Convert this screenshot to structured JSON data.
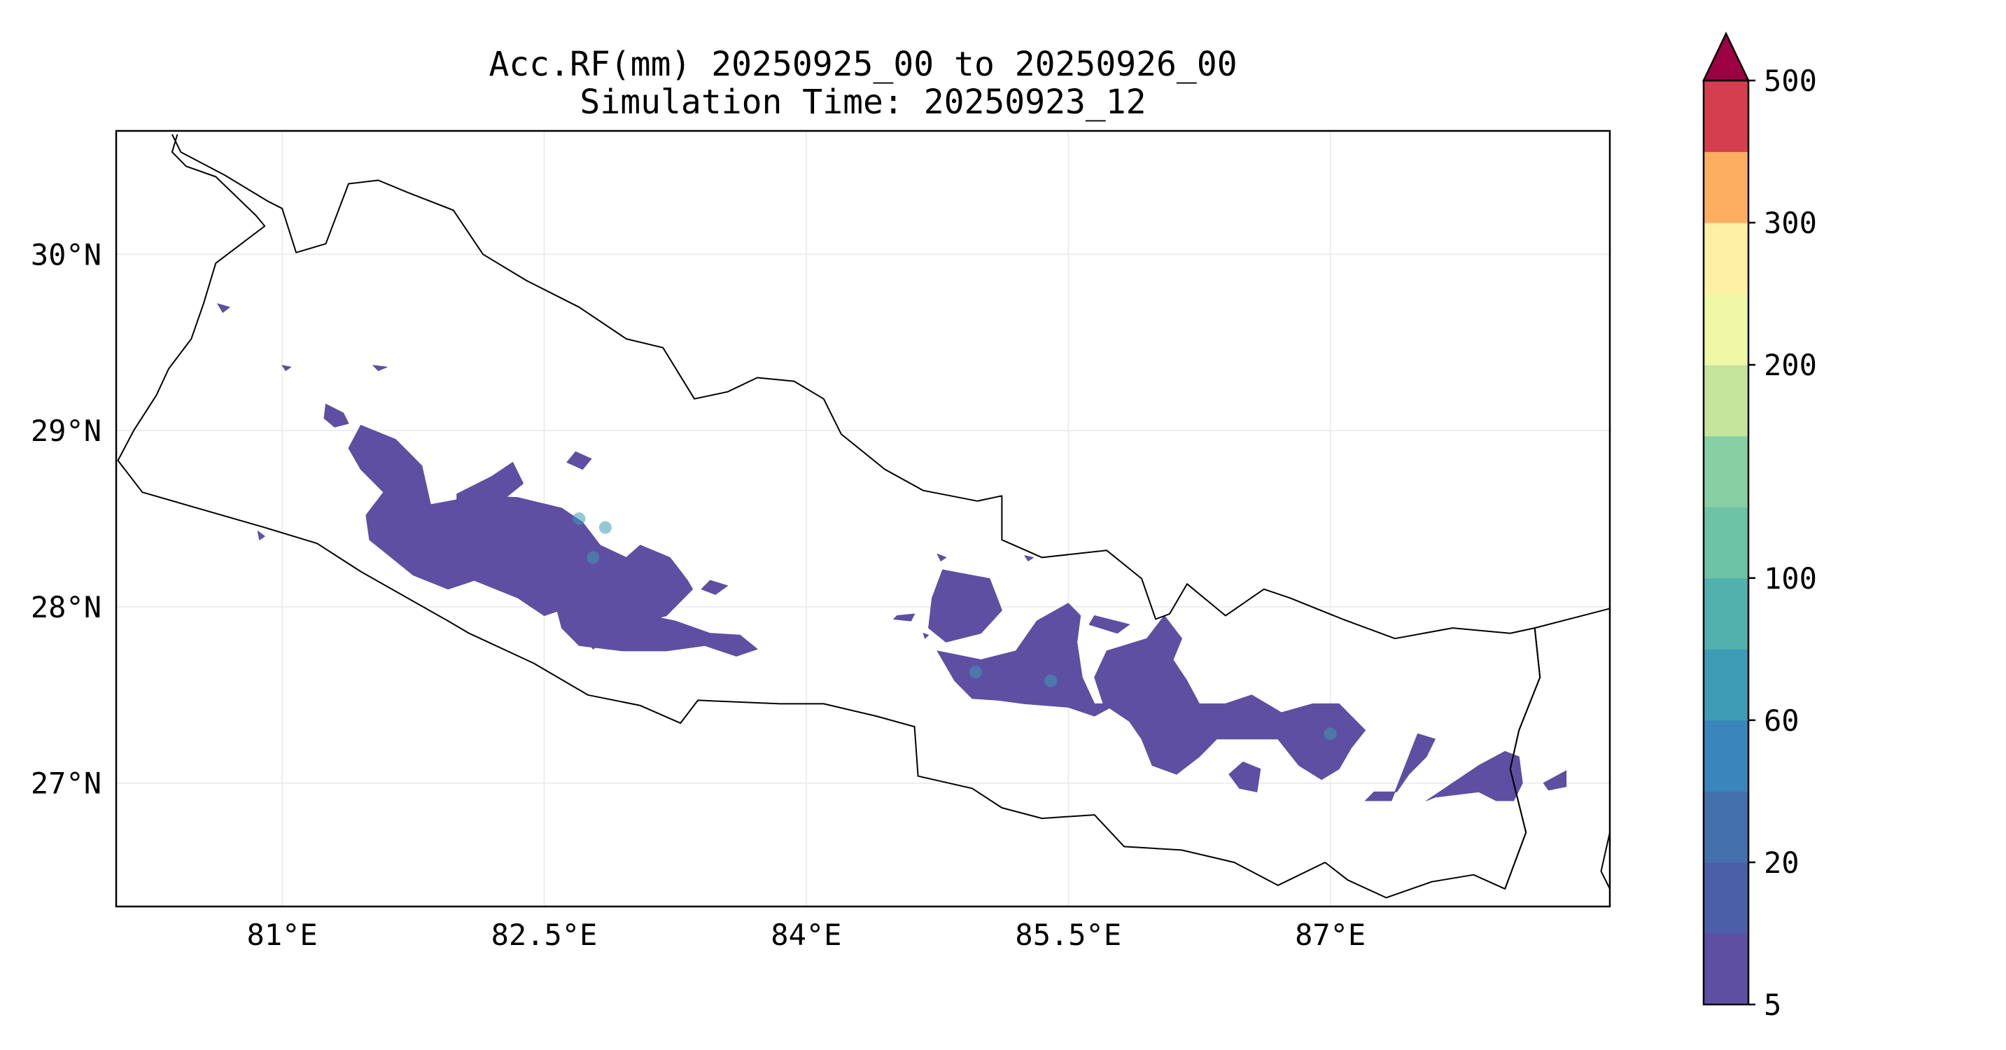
{
  "title": {
    "line1": "Acc.RF(mm) 20250925_00 to 20250926_00",
    "line2": "Simulation Time: 20250923_12"
  },
  "map": {
    "lon_range": [
      80.05,
      88.6
    ],
    "lat_range": [
      26.3,
      30.7
    ],
    "gridlines": true,
    "x_ticks": [
      {
        "value": 81,
        "label": "81°E"
      },
      {
        "value": 82.5,
        "label": "82.5°E"
      },
      {
        "value": 84,
        "label": "84°E"
      },
      {
        "value": 85.5,
        "label": "85.5°E"
      },
      {
        "value": 87,
        "label": "87°E"
      }
    ],
    "y_ticks": [
      {
        "value": 30,
        "label": "30°N"
      },
      {
        "value": 29,
        "label": "29°N"
      },
      {
        "value": 28,
        "label": "28°N"
      },
      {
        "value": 27,
        "label": "27°N"
      }
    ],
    "boundary": [
      [
        80.37,
        30.68
      ],
      [
        80.42,
        30.58
      ],
      [
        80.67,
        30.45
      ],
      [
        80.92,
        30.3
      ],
      [
        81.0,
        30.26
      ],
      [
        81.08,
        30.01
      ],
      [
        81.25,
        30.06
      ],
      [
        81.38,
        30.4
      ],
      [
        81.55,
        30.42
      ],
      [
        81.72,
        30.35
      ],
      [
        81.98,
        30.25
      ],
      [
        82.15,
        30.0
      ],
      [
        82.4,
        29.85
      ],
      [
        82.7,
        29.7
      ],
      [
        82.97,
        29.52
      ],
      [
        83.18,
        29.47
      ],
      [
        83.36,
        29.18
      ],
      [
        83.55,
        29.22
      ],
      [
        83.72,
        29.3
      ],
      [
        83.93,
        29.28
      ],
      [
        84.1,
        29.18
      ],
      [
        84.2,
        28.98
      ],
      [
        84.45,
        28.78
      ],
      [
        84.67,
        28.66
      ],
      [
        84.98,
        28.6
      ],
      [
        85.12,
        28.63
      ],
      [
        85.12,
        28.38
      ],
      [
        85.35,
        28.28
      ],
      [
        85.72,
        28.32
      ],
      [
        85.92,
        28.16
      ],
      [
        86.0,
        27.93
      ],
      [
        86.08,
        27.96
      ],
      [
        86.18,
        28.13
      ],
      [
        86.4,
        27.95
      ],
      [
        86.62,
        28.1
      ],
      [
        86.77,
        28.05
      ],
      [
        87.07,
        27.93
      ],
      [
        87.37,
        27.82
      ],
      [
        87.7,
        27.88
      ],
      [
        88.03,
        27.85
      ],
      [
        88.17,
        27.88
      ],
      [
        88.2,
        27.6
      ],
      [
        88.08,
        27.3
      ],
      [
        88.03,
        27.08
      ],
      [
        88.12,
        26.72
      ],
      [
        88.0,
        26.4
      ],
      [
        87.82,
        26.48
      ],
      [
        87.58,
        26.44
      ],
      [
        87.32,
        26.35
      ],
      [
        87.1,
        26.45
      ],
      [
        86.97,
        26.55
      ],
      [
        86.7,
        26.42
      ],
      [
        86.45,
        26.55
      ],
      [
        86.15,
        26.62
      ],
      [
        85.82,
        26.64
      ],
      [
        85.65,
        26.82
      ],
      [
        85.35,
        26.8
      ],
      [
        85.12,
        26.86
      ],
      [
        84.95,
        26.97
      ],
      [
        84.64,
        27.04
      ],
      [
        84.62,
        27.32
      ],
      [
        84.4,
        27.38
      ],
      [
        84.1,
        27.45
      ],
      [
        83.85,
        27.45
      ],
      [
        83.38,
        27.47
      ],
      [
        83.28,
        27.34
      ],
      [
        83.05,
        27.44
      ],
      [
        82.75,
        27.5
      ],
      [
        82.44,
        27.68
      ],
      [
        82.07,
        27.85
      ],
      [
        81.95,
        27.92
      ],
      [
        81.45,
        28.2
      ],
      [
        81.2,
        28.36
      ],
      [
        80.9,
        28.45
      ],
      [
        80.55,
        28.55
      ],
      [
        80.2,
        28.65
      ],
      [
        80.06,
        28.83
      ],
      [
        80.15,
        29.0
      ],
      [
        80.28,
        29.2
      ],
      [
        80.35,
        29.35
      ],
      [
        80.48,
        29.52
      ],
      [
        80.55,
        29.72
      ],
      [
        80.62,
        29.95
      ],
      [
        80.9,
        30.16
      ],
      [
        80.85,
        30.22
      ],
      [
        80.62,
        30.44
      ],
      [
        80.45,
        30.5
      ],
      [
        80.37,
        30.58
      ],
      [
        80.4,
        30.68
      ]
    ],
    "sikkim_border": [
      [
        88.6,
        27.99
      ],
      [
        88.17,
        27.88
      ],
      [
        88.2,
        27.6
      ],
      [
        88.08,
        27.3
      ],
      [
        88.03,
        27.08
      ],
      [
        88.12,
        26.72
      ],
      [
        88.0,
        26.4
      ]
    ],
    "east_fragment": [
      [
        88.6,
        26.72
      ],
      [
        88.55,
        26.5
      ],
      [
        88.6,
        26.4
      ]
    ],
    "rain_patches": [
      {
        "name": "west-main-band",
        "points": [
          [
            81.45,
            29.03
          ],
          [
            81.65,
            28.95
          ],
          [
            81.8,
            28.8
          ],
          [
            81.85,
            28.58
          ],
          [
            82.12,
            28.63
          ],
          [
            82.35,
            28.62
          ],
          [
            82.6,
            28.56
          ],
          [
            82.72,
            28.48
          ],
          [
            82.82,
            28.35
          ],
          [
            82.97,
            28.28
          ],
          [
            83.05,
            28.35
          ],
          [
            83.22,
            28.28
          ],
          [
            83.32,
            28.15
          ],
          [
            83.35,
            28.1
          ],
          [
            83.2,
            27.95
          ],
          [
            83.1,
            27.92
          ],
          [
            82.95,
            28.0
          ],
          [
            82.8,
            27.92
          ],
          [
            82.65,
            28.0
          ],
          [
            82.5,
            27.95
          ],
          [
            82.35,
            28.05
          ],
          [
            82.1,
            28.15
          ],
          [
            81.95,
            28.1
          ],
          [
            81.75,
            28.18
          ],
          [
            81.6,
            28.3
          ],
          [
            81.5,
            28.38
          ],
          [
            81.48,
            28.52
          ],
          [
            81.58,
            28.65
          ],
          [
            81.45,
            28.78
          ],
          [
            81.38,
            28.9
          ]
        ]
      },
      {
        "name": "west-lower-tail",
        "points": [
          [
            82.55,
            28.07
          ],
          [
            82.8,
            28.06
          ],
          [
            83.1,
            27.95
          ],
          [
            83.25,
            27.92
          ],
          [
            83.45,
            27.85
          ],
          [
            83.62,
            27.84
          ],
          [
            83.72,
            27.76
          ],
          [
            83.6,
            27.72
          ],
          [
            83.42,
            27.78
          ],
          [
            83.2,
            27.75
          ],
          [
            82.95,
            27.75
          ],
          [
            82.7,
            27.78
          ],
          [
            82.6,
            27.88
          ]
        ]
      },
      {
        "name": "west-north-spur",
        "points": [
          [
            82.0,
            28.64
          ],
          [
            82.2,
            28.74
          ],
          [
            82.32,
            28.82
          ],
          [
            82.38,
            28.7
          ],
          [
            82.28,
            28.62
          ],
          [
            82.12,
            28.57
          ],
          [
            82.0,
            28.55
          ]
        ]
      },
      {
        "name": "west-small-1",
        "points": [
          [
            81.25,
            29.15
          ],
          [
            81.35,
            29.1
          ],
          [
            81.38,
            29.04
          ],
          [
            81.3,
            29.02
          ],
          [
            81.24,
            29.07
          ]
        ]
      },
      {
        "name": "west-small-2",
        "points": [
          [
            82.68,
            28.88
          ],
          [
            82.77,
            28.84
          ],
          [
            82.72,
            28.78
          ],
          [
            82.63,
            28.82
          ]
        ]
      },
      {
        "name": "west-small-3",
        "points": [
          [
            83.45,
            28.15
          ],
          [
            83.55,
            28.12
          ],
          [
            83.48,
            28.07
          ],
          [
            83.4,
            28.1
          ]
        ]
      },
      {
        "name": "west-small-4",
        "points": [
          [
            82.75,
            27.8
          ],
          [
            82.82,
            27.79
          ],
          [
            82.78,
            27.76
          ]
        ]
      },
      {
        "name": "far-west-dot-1",
        "points": [
          [
            80.63,
            29.72
          ],
          [
            80.7,
            29.7
          ],
          [
            80.66,
            29.67
          ]
        ]
      },
      {
        "name": "far-west-dot-2",
        "points": [
          [
            81.0,
            29.37
          ],
          [
            81.05,
            29.36
          ],
          [
            81.02,
            29.34
          ]
        ]
      },
      {
        "name": "far-west-dot-3",
        "points": [
          [
            81.52,
            29.37
          ],
          [
            81.6,
            29.36
          ],
          [
            81.55,
            29.34
          ]
        ]
      },
      {
        "name": "far-west-dot-4",
        "points": [
          [
            80.86,
            28.43
          ],
          [
            80.9,
            28.4
          ],
          [
            80.87,
            28.38
          ]
        ]
      },
      {
        "name": "central-block",
        "points": [
          [
            84.78,
            28.21
          ],
          [
            85.05,
            28.16
          ],
          [
            85.12,
            27.98
          ],
          [
            85.0,
            27.85
          ],
          [
            84.8,
            27.8
          ],
          [
            84.7,
            27.88
          ],
          [
            84.72,
            28.05
          ]
        ]
      },
      {
        "name": "central-lower",
        "points": [
          [
            84.75,
            27.75
          ],
          [
            85.0,
            27.7
          ],
          [
            85.2,
            27.75
          ],
          [
            85.32,
            27.92
          ],
          [
            85.5,
            28.02
          ],
          [
            85.57,
            27.95
          ],
          [
            85.55,
            27.8
          ],
          [
            85.58,
            27.6
          ],
          [
            85.65,
            27.45
          ],
          [
            85.78,
            27.45
          ],
          [
            85.65,
            27.38
          ],
          [
            85.5,
            27.43
          ],
          [
            85.25,
            27.45
          ],
          [
            85.1,
            27.47
          ],
          [
            84.95,
            27.48
          ],
          [
            84.85,
            27.58
          ]
        ]
      },
      {
        "name": "central-right-flat",
        "points": [
          [
            85.65,
            27.95
          ],
          [
            85.85,
            27.9
          ],
          [
            85.78,
            27.85
          ],
          [
            85.62,
            27.9
          ]
        ]
      },
      {
        "name": "central-small-1",
        "points": [
          [
            84.52,
            27.95
          ],
          [
            84.62,
            27.96
          ],
          [
            84.6,
            27.92
          ],
          [
            84.5,
            27.93
          ]
        ]
      },
      {
        "name": "central-small-2",
        "points": [
          [
            84.75,
            28.3
          ],
          [
            84.8,
            28.28
          ],
          [
            84.77,
            28.26
          ]
        ]
      },
      {
        "name": "central-small-3",
        "points": [
          [
            84.67,
            27.85
          ],
          [
            84.7,
            27.84
          ],
          [
            84.68,
            27.82
          ]
        ]
      },
      {
        "name": "central-small-4",
        "points": [
          [
            85.25,
            28.29
          ],
          [
            85.3,
            28.28
          ],
          [
            85.27,
            28.26
          ]
        ]
      },
      {
        "name": "east-main-band",
        "points": [
          [
            85.72,
            27.75
          ],
          [
            85.95,
            27.82
          ],
          [
            86.05,
            27.95
          ],
          [
            86.15,
            27.82
          ],
          [
            86.1,
            27.7
          ],
          [
            86.18,
            27.58
          ],
          [
            86.25,
            27.45
          ],
          [
            86.4,
            27.45
          ],
          [
            86.55,
            27.5
          ],
          [
            86.72,
            27.4
          ],
          [
            86.9,
            27.45
          ],
          [
            87.05,
            27.45
          ],
          [
            87.2,
            27.3
          ],
          [
            87.12,
            27.2
          ],
          [
            87.05,
            27.08
          ],
          [
            86.95,
            27.02
          ],
          [
            86.82,
            27.1
          ],
          [
            86.7,
            27.25
          ],
          [
            86.55,
            27.25
          ],
          [
            86.35,
            27.25
          ],
          [
            86.25,
            27.15
          ],
          [
            86.12,
            27.05
          ],
          [
            85.98,
            27.1
          ],
          [
            85.92,
            27.25
          ],
          [
            85.85,
            27.35
          ],
          [
            85.7,
            27.45
          ],
          [
            85.65,
            27.6
          ]
        ]
      },
      {
        "name": "east-small-1",
        "points": [
          [
            86.5,
            27.12
          ],
          [
            86.6,
            27.08
          ],
          [
            86.58,
            26.95
          ],
          [
            86.48,
            26.97
          ],
          [
            86.42,
            27.05
          ]
        ]
      },
      {
        "name": "east-small-2",
        "points": [
          [
            87.5,
            27.28
          ],
          [
            87.6,
            27.25
          ],
          [
            87.55,
            27.15
          ],
          [
            87.45,
            27.05
          ],
          [
            87.38,
            26.95
          ],
          [
            87.25,
            26.95
          ],
          [
            87.2,
            26.9
          ],
          [
            87.35,
            26.9
          ]
        ]
      },
      {
        "name": "east-small-3",
        "points": [
          [
            87.7,
            27.0
          ],
          [
            87.85,
            27.1
          ],
          [
            88.0,
            27.18
          ],
          [
            88.08,
            27.15
          ],
          [
            88.1,
            27.0
          ],
          [
            88.05,
            26.9
          ],
          [
            87.95,
            26.9
          ],
          [
            87.85,
            26.95
          ],
          [
            87.6,
            26.92
          ],
          [
            87.55,
            26.9
          ]
        ]
      },
      {
        "name": "east-small-4",
        "points": [
          [
            88.22,
            27.0
          ],
          [
            88.35,
            27.07
          ],
          [
            88.35,
            26.98
          ],
          [
            88.25,
            26.96
          ]
        ]
      }
    ],
    "rain_highlights": [
      {
        "lon": 82.7,
        "lat": 28.5
      },
      {
        "lon": 82.85,
        "lat": 28.45
      },
      {
        "lon": 82.78,
        "lat": 28.28
      },
      {
        "lon": 84.97,
        "lat": 27.63
      },
      {
        "lon": 85.4,
        "lat": 27.58
      },
      {
        "lon": 87.0,
        "lat": 27.28
      }
    ]
  },
  "colorbar": {
    "levels": [
      "5",
      "",
      "20",
      "",
      "60",
      "",
      "100",
      "",
      "",
      "200",
      "",
      "300",
      "",
      "500"
    ],
    "tick_labels": [
      "5",
      "20",
      "60",
      "100",
      "200",
      "300",
      "500"
    ],
    "colors": [
      "#5e4fa2",
      "#4a5fa8",
      "#4570ae",
      "#3a86bc",
      "#3e9bb5",
      "#52b0ad",
      "#6cc3a5",
      "#86d0a4",
      "#c5e49b",
      "#eef8a7",
      "#fdefa4",
      "#fdae61",
      "#d53e4f"
    ],
    "extend_color": "#9e0142",
    "outline": "#000000"
  },
  "colors": {
    "rain_base": "#5e4fa2",
    "rain_highlight": "#3e9bb5",
    "boundary": "#000000",
    "grid": "#e8e8e8"
  }
}
